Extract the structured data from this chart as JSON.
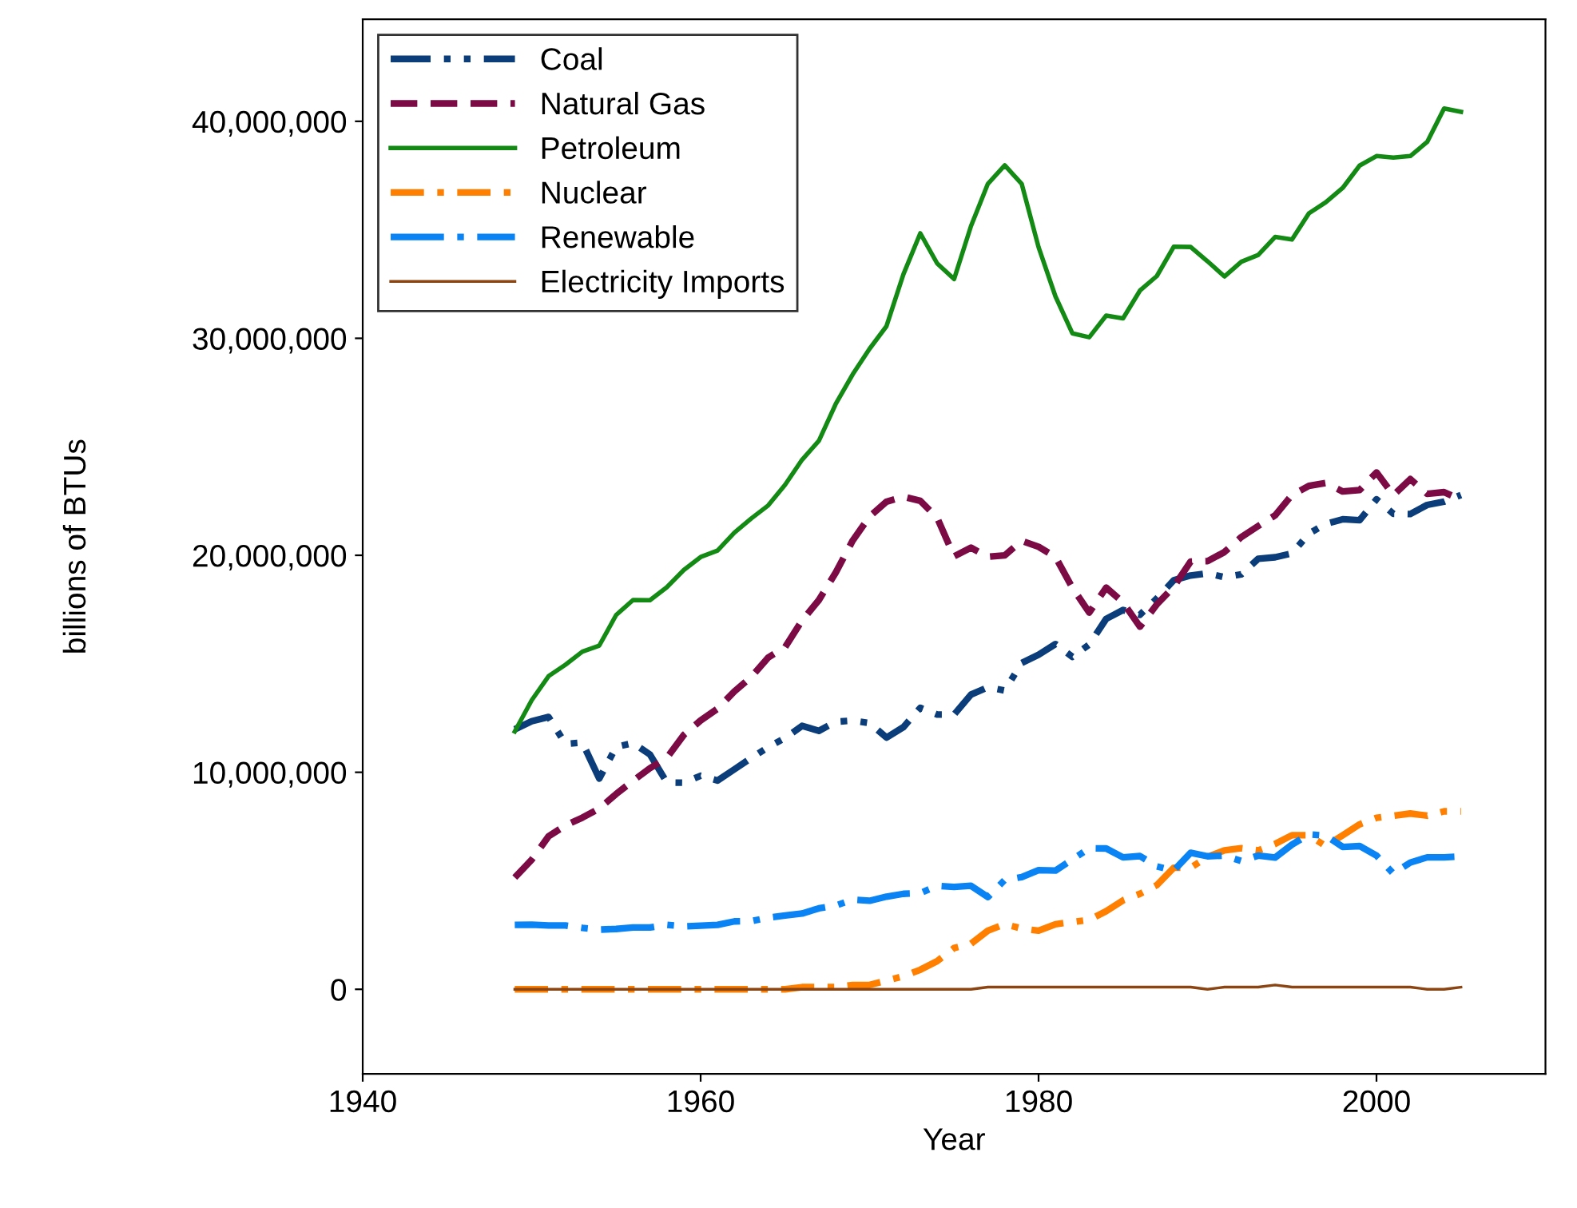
{
  "chart_data": {
    "type": "line",
    "xlabel": "Year",
    "ylabel": "billions of BTUs",
    "xlim": [
      1940,
      2010
    ],
    "xticks": [
      1940,
      1960,
      1980,
      2000
    ],
    "ylim": [
      -3900000,
      44700000
    ],
    "yticks": [
      {
        "value": 0,
        "label": "0"
      },
      {
        "value": 10000000,
        "label": "10,000,000"
      },
      {
        "value": 20000000,
        "label": "20,000,000"
      },
      {
        "value": 30000000,
        "label": "30,000,000"
      },
      {
        "value": 40000000,
        "label": "40,000,000"
      }
    ],
    "x": [
      1949,
      1950,
      1951,
      1952,
      1953,
      1954,
      1955,
      1956,
      1957,
      1958,
      1959,
      1960,
      1961,
      1962,
      1963,
      1964,
      1965,
      1966,
      1967,
      1968,
      1969,
      1970,
      1971,
      1972,
      1973,
      1974,
      1975,
      1976,
      1977,
      1978,
      1979,
      1980,
      1981,
      1982,
      1983,
      1984,
      1985,
      1986,
      1987,
      1988,
      1989,
      1990,
      1991,
      1992,
      1993,
      1994,
      1995,
      1996,
      1997,
      1998,
      1999,
      2000,
      2001,
      2002,
      2003,
      2004,
      2005
    ],
    "grid": false,
    "legend": "top left",
    "series": [
      {
        "name": "Coal",
        "color": "#0b3d7a",
        "line_style": "dashdotdot",
        "values": [
          11980000,
          12350000,
          12550000,
          11310000,
          11370000,
          9710000,
          11170000,
          11350000,
          10820000,
          9530000,
          9520000,
          9840000,
          9620000,
          10140000,
          10660000,
          11160000,
          11580000,
          12140000,
          11910000,
          12330000,
          12380000,
          12270000,
          11600000,
          12080000,
          12970000,
          12660000,
          12660000,
          13580000,
          13920000,
          13770000,
          15040000,
          15420000,
          15910000,
          15320000,
          15890000,
          17070000,
          17480000,
          17260000,
          18010000,
          18850000,
          19070000,
          19170000,
          18990000,
          19120000,
          19840000,
          19910000,
          20090000,
          21000000,
          21450000,
          21660000,
          21620000,
          22580000,
          21910000,
          21900000,
          22320000,
          22470000,
          22780000
        ]
      },
      {
        "name": "Natural Gas",
        "color": "#7b0a45",
        "line_style": "dashed",
        "values": [
          5150000,
          5970000,
          7050000,
          7550000,
          7910000,
          8330000,
          9000000,
          9610000,
          10190000,
          10660000,
          11720000,
          12390000,
          12930000,
          13730000,
          14400000,
          15290000,
          15770000,
          16990000,
          17940000,
          19210000,
          20680000,
          21790000,
          22470000,
          22700000,
          22510000,
          21730000,
          19950000,
          20350000,
          19930000,
          20000000,
          20670000,
          20390000,
          19930000,
          18510000,
          17360000,
          18510000,
          17830000,
          16710000,
          17740000,
          18550000,
          19710000,
          19730000,
          20150000,
          20840000,
          21350000,
          21840000,
          22780000,
          23200000,
          23330000,
          22940000,
          23010000,
          23820000,
          22770000,
          23510000,
          22830000,
          22910000,
          22560000
        ]
      },
      {
        "name": "Petroleum",
        "color": "#138a13",
        "line_style": "solid",
        "values": [
          11880000,
          13320000,
          14430000,
          14960000,
          15560000,
          15840000,
          17250000,
          17940000,
          17930000,
          18530000,
          19320000,
          19920000,
          20220000,
          21050000,
          21700000,
          22300000,
          23250000,
          24400000,
          25280000,
          26980000,
          28340000,
          29520000,
          30560000,
          32950000,
          34840000,
          33450000,
          32730000,
          35170000,
          37120000,
          37970000,
          37120000,
          34200000,
          31930000,
          30230000,
          30050000,
          31050000,
          30920000,
          32200000,
          32870000,
          34220000,
          34210000,
          33550000,
          32850000,
          33530000,
          33840000,
          34670000,
          34550000,
          35760000,
          36270000,
          36930000,
          37960000,
          38400000,
          38330000,
          38400000,
          39050000,
          40590000,
          40440000
        ]
      },
      {
        "name": "Nuclear",
        "color": "#ff8000",
        "line_style": "dashdot",
        "values": [
          0,
          0,
          0,
          0,
          0,
          0,
          0,
          0,
          0,
          0,
          0,
          0,
          0,
          0,
          0,
          0,
          0,
          100000,
          100000,
          100000,
          200000,
          200000,
          400000,
          600000,
          900000,
          1300000,
          1900000,
          2100000,
          2700000,
          3000000,
          2800000,
          2700000,
          3000000,
          3100000,
          3200000,
          3600000,
          4100000,
          4400000,
          4800000,
          5600000,
          5600000,
          6100000,
          6400000,
          6500000,
          6400000,
          6700000,
          7100000,
          7100000,
          6600000,
          7100000,
          7600000,
          7900000,
          8000000,
          8100000,
          8000000,
          8200000,
          8200000
        ]
      },
      {
        "name": "Renewable",
        "color": "#0a84f5",
        "line_style": "longdashdot",
        "values": [
          2970000,
          2980000,
          2940000,
          2940000,
          2830000,
          2750000,
          2780000,
          2850000,
          2850000,
          2970000,
          2900000,
          2930000,
          2970000,
          3130000,
          3140000,
          3300000,
          3400000,
          3490000,
          3730000,
          3860000,
          4130000,
          4080000,
          4270000,
          4400000,
          4430000,
          4770000,
          4720000,
          4770000,
          4250000,
          5040000,
          5170000,
          5490000,
          5470000,
          5980000,
          6500000,
          6490000,
          6080000,
          6140000,
          5660000,
          5470000,
          6290000,
          6130000,
          6160000,
          5910000,
          6160000,
          6070000,
          6670000,
          7140000,
          7080000,
          6560000,
          6600000,
          6160000,
          5330000,
          5840000,
          6080000,
          6080000,
          6120000
        ]
      },
      {
        "name": "Electricity Imports",
        "color": "#8b4513",
        "line_style": "solid",
        "values": [
          0,
          0,
          0,
          0,
          0,
          0,
          0,
          0,
          0,
          0,
          0,
          0,
          0,
          0,
          0,
          0,
          0,
          0,
          0,
          0,
          0,
          0,
          0,
          0,
          0,
          0,
          0,
          0,
          100000,
          100000,
          100000,
          100000,
          100000,
          100000,
          100000,
          100000,
          100000,
          100000,
          100000,
          100000,
          100000,
          0,
          100000,
          100000,
          100000,
          200000,
          100000,
          100000,
          100000,
          100000,
          100000,
          100000,
          100000,
          100000,
          0,
          0,
          100000
        ]
      }
    ]
  }
}
